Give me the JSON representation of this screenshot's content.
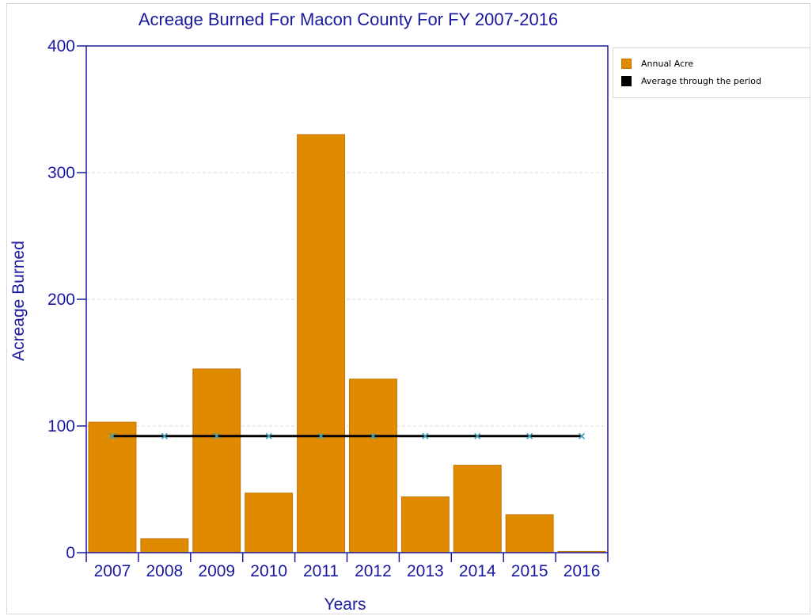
{
  "colors": {
    "bar": "#e08a00",
    "bar_edge": "#c07400",
    "average_line": "#000000",
    "marker": "#3aa0b8",
    "axis": "#1a1aa0",
    "grid": "#d9d9d9"
  },
  "legend": {
    "placement": "right",
    "items": [
      {
        "label": "Annual Acre",
        "color": "#e08a00"
      },
      {
        "label": "Average through the period",
        "color": "#000000"
      }
    ]
  },
  "chart_data": {
    "type": "bar",
    "title": "Acreage Burned For Macon County For FY 2007-2016",
    "xlabel": "Years",
    "ylabel": "Acreage Burned",
    "categories": [
      "2007",
      "2008",
      "2009",
      "2010",
      "2011",
      "2012",
      "2013",
      "2014",
      "2015",
      "2016"
    ],
    "series": [
      {
        "name": "Annual Acre",
        "type": "bar",
        "values": [
          103,
          11,
          145,
          47,
          330,
          137,
          44,
          69,
          30,
          1
        ]
      },
      {
        "name": "Average through the period",
        "type": "line",
        "marker": "x",
        "values": [
          92,
          92,
          92,
          92,
          92,
          92,
          92,
          92,
          92,
          92
        ]
      }
    ],
    "ylim": [
      0,
      400
    ],
    "yticks": [
      0,
      100,
      200,
      300,
      400
    ],
    "grid": true,
    "grid_style": "dashed"
  }
}
